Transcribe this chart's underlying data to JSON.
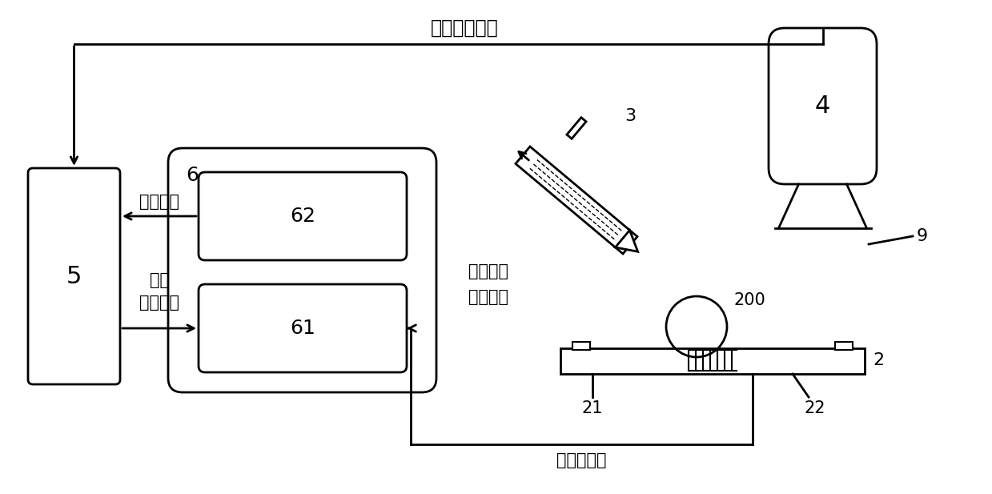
{
  "bg_color": "#ffffff",
  "line_color": "#000000",
  "title_text": "红外成像图像",
  "label_measurement_data": "测量数据",
  "label_set_temp": "设定\n温度程序",
  "label_laser": "激光加热\n功率输入",
  "label_temp_value": "测量温度值",
  "box5_label": "5",
  "box6_label": "6",
  "box61_label": "61",
  "box62_label": "62",
  "box4_label": "4",
  "label_3": "3",
  "label_9": "9",
  "label_200": "200",
  "label_2": "2",
  "label_21": "21",
  "label_22": "22"
}
